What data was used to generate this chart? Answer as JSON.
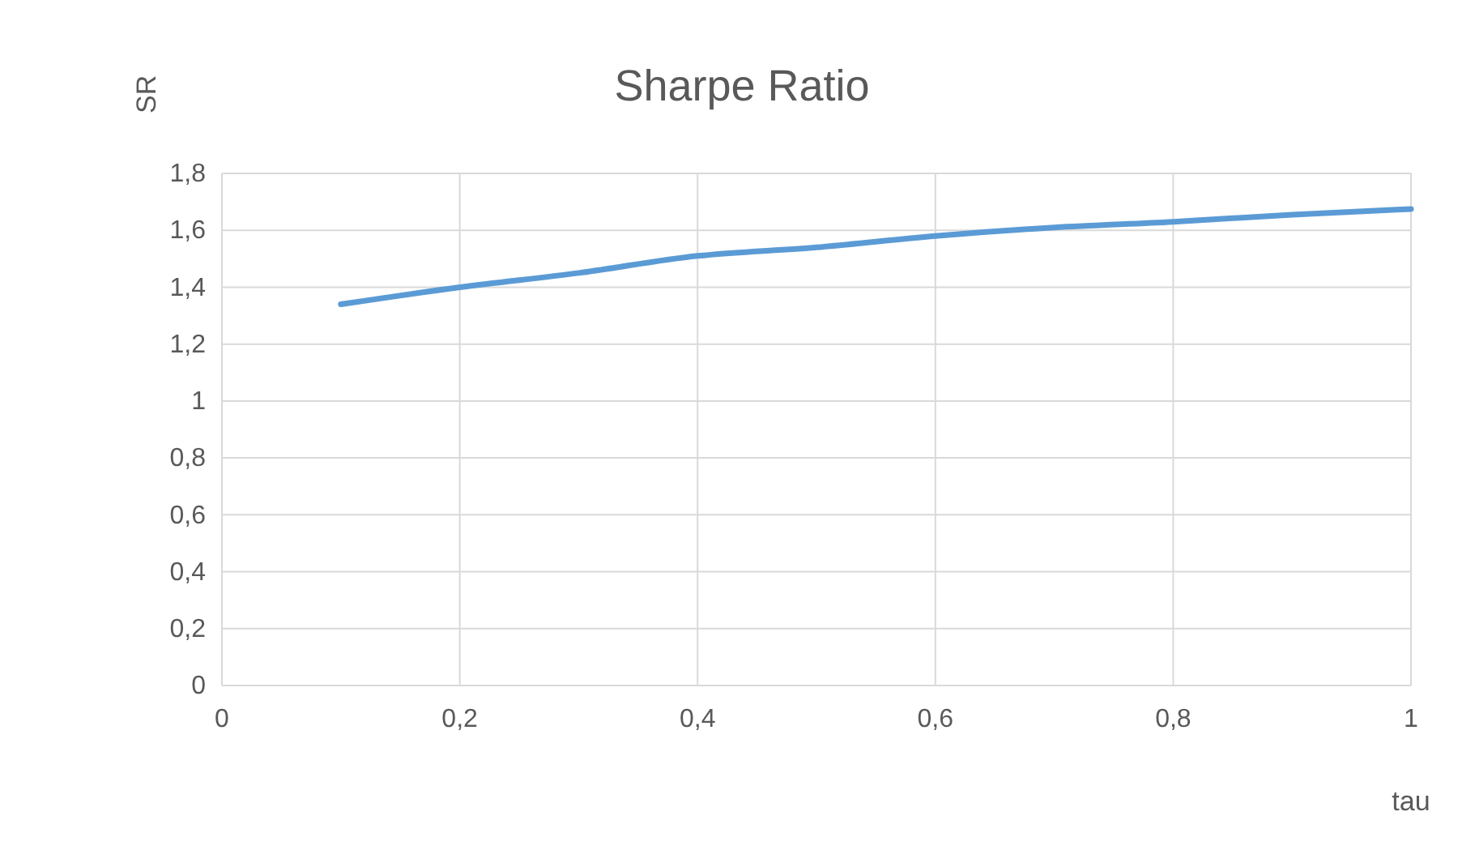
{
  "chart_data": {
    "type": "line",
    "title": "Sharpe Ratio",
    "xlabel": "tau",
    "ylabel": "SR",
    "x": [
      0.1,
      0.2,
      0.3,
      0.4,
      0.5,
      0.6,
      0.7,
      0.8,
      0.9,
      1.0
    ],
    "series": [
      {
        "color": "#5b9bd5",
        "values": [
          1.34,
          1.4,
          1.45,
          1.51,
          1.54,
          1.58,
          1.61,
          1.63,
          1.655,
          1.675
        ]
      }
    ],
    "xlim": [
      0,
      1
    ],
    "xticks": [
      0,
      {
        "value": 0.2,
        "label": "0,2"
      },
      {
        "value": 0.4,
        "label": "0,4"
      },
      {
        "value": 0.6,
        "label": "0,6"
      },
      {
        "value": 0.8,
        "label": "0,8"
      },
      1
    ],
    "ylim": [
      0,
      1.8
    ],
    "yticks": [
      0,
      {
        "value": 0.2,
        "label": "0,2"
      },
      {
        "value": 0.4,
        "label": "0,4"
      },
      {
        "value": 0.6,
        "label": "0,6"
      },
      {
        "value": 0.8,
        "label": "0,8"
      },
      1,
      {
        "value": 1.2,
        "label": "1,2"
      },
      {
        "value": 1.4,
        "label": "1,4"
      },
      {
        "value": 1.6,
        "label": "1,6"
      },
      {
        "value": 1.8,
        "label": "1,8"
      }
    ],
    "grid": true,
    "marker": "none",
    "line_style": "solid"
  }
}
